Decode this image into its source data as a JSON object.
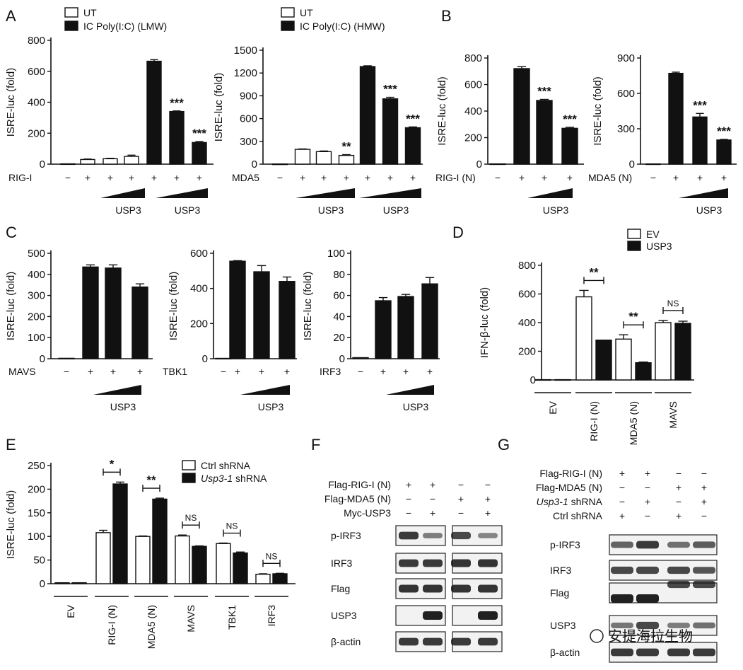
{
  "panels": [
    "A",
    "B",
    "C",
    "D",
    "E",
    "F",
    "G"
  ],
  "watermark": "安提海拉生物",
  "chart_data": [
    {
      "id": "A1",
      "type": "bar",
      "panel": "A",
      "ylabel": "ISRE-luc (fold)",
      "ylim": [
        0,
        800
      ],
      "yticks": [
        0,
        200,
        400,
        600,
        800
      ],
      "legend": [
        "UT",
        "IC Poly(I:C) (LMW)"
      ],
      "row_label": "RIG-I",
      "plus_minus": [
        "−",
        "+",
        "+",
        "+",
        "+",
        "+",
        "+"
      ],
      "fills": [
        "open",
        "open",
        "open",
        "open",
        "solid",
        "solid",
        "solid"
      ],
      "values": [
        2,
        30,
        35,
        50,
        665,
        340,
        140
      ],
      "errors": [
        0,
        3,
        3,
        8,
        10,
        4,
        6
      ],
      "sig": [
        "",
        "",
        "",
        "",
        "",
        "***",
        "***"
      ],
      "dose": [
        "USP3",
        "USP3"
      ]
    },
    {
      "id": "A2",
      "type": "bar",
      "panel": "A",
      "ylabel": "ISRE-luc (fold)",
      "ylim": [
        0,
        1500
      ],
      "yticks": [
        0,
        300,
        600,
        900,
        1200,
        1500
      ],
      "legend": [
        "UT",
        "IC Poly(I:C) (HMW)"
      ],
      "row_label": "MDA5",
      "plus_minus": [
        "−",
        "+",
        "+",
        "+",
        "+",
        "+",
        "+"
      ],
      "fills": [
        "open",
        "open",
        "open",
        "open",
        "solid",
        "solid",
        "solid"
      ],
      "values": [
        2,
        195,
        165,
        115,
        1285,
        860,
        480
      ],
      "errors": [
        0,
        5,
        8,
        10,
        10,
        20,
        10
      ],
      "sig": [
        "",
        "",
        "",
        "**",
        "",
        "***",
        "***"
      ],
      "dose": [
        "USP3",
        "USP3"
      ]
    },
    {
      "id": "B1",
      "type": "bar",
      "panel": "B",
      "ylabel": "ISRE-luc (fold)",
      "ylim": [
        0,
        800
      ],
      "yticks": [
        0,
        200,
        400,
        600,
        800
      ],
      "row_label": "RIG-I (N)",
      "plus_minus": [
        "−",
        "+",
        "+",
        "+"
      ],
      "fills": [
        "solid",
        "solid",
        "solid",
        "solid"
      ],
      "values": [
        2,
        720,
        480,
        270
      ],
      "errors": [
        0,
        15,
        8,
        8
      ],
      "sig": [
        "",
        "",
        "***",
        "***"
      ],
      "dose": [
        "USP3"
      ]
    },
    {
      "id": "B2",
      "type": "bar",
      "panel": "B",
      "ylabel": "ISRE-luc (fold)",
      "ylim": [
        0,
        900
      ],
      "yticks": [
        0,
        300,
        600,
        900
      ],
      "row_label": "MDA5 (N)",
      "plus_minus": [
        "−",
        "+",
        "+",
        "+"
      ],
      "fills": [
        "solid",
        "solid",
        "solid",
        "solid"
      ],
      "values": [
        2,
        770,
        400,
        205
      ],
      "errors": [
        0,
        10,
        30,
        5
      ],
      "sig": [
        "",
        "",
        "***",
        "***"
      ],
      "dose": [
        "USP3"
      ]
    },
    {
      "id": "C1",
      "type": "bar",
      "panel": "C",
      "ylabel": "ISRE-luc (fold)",
      "ylim": [
        0,
        500
      ],
      "yticks": [
        0,
        100,
        200,
        300,
        400,
        500
      ],
      "row_label": "MAVS",
      "plus_minus": [
        "−",
        "+",
        "+",
        "+"
      ],
      "fills": [
        "solid",
        "solid",
        "solid",
        "solid"
      ],
      "values": [
        2,
        435,
        430,
        340
      ],
      "errors": [
        0,
        10,
        15,
        15
      ],
      "sig": [
        "",
        "",
        "",
        ""
      ],
      "dose": [
        "USP3"
      ]
    },
    {
      "id": "C2",
      "type": "bar",
      "panel": "C",
      "ylabel": "ISRE-luc (fold)",
      "ylim": [
        0,
        600
      ],
      "yticks": [
        0,
        200,
        400,
        600
      ],
      "row_label": "TBK1",
      "plus_minus": [
        "−",
        "+",
        "+",
        "+"
      ],
      "fills": [
        "solid",
        "solid",
        "solid",
        "solid"
      ],
      "values": [
        2,
        555,
        495,
        440
      ],
      "errors": [
        0,
        3,
        35,
        25
      ],
      "sig": [
        "",
        "",
        "",
        ""
      ],
      "dose": [
        "USP3"
      ]
    },
    {
      "id": "C3",
      "type": "bar",
      "panel": "C",
      "ylabel": "ISRE-luc (fold)",
      "ylim": [
        0,
        100
      ],
      "yticks": [
        0,
        20,
        40,
        60,
        80,
        100
      ],
      "row_label": "IRF3",
      "plus_minus": [
        "−",
        "+",
        "+",
        "+"
      ],
      "fills": [
        "solid",
        "solid",
        "solid",
        "solid"
      ],
      "values": [
        1,
        55,
        59,
        71
      ],
      "errors": [
        0,
        3,
        2,
        6
      ],
      "sig": [
        "",
        "",
        "",
        ""
      ],
      "dose": [
        "USP3"
      ]
    },
    {
      "id": "D",
      "type": "bar",
      "panel": "D",
      "ylabel": "IFN-β-luc (fold)",
      "ylim": [
        0,
        800
      ],
      "yticks": [
        0,
        200,
        400,
        600,
        800
      ],
      "legend": [
        "EV",
        "USP3"
      ],
      "categories": [
        "EV",
        "RIG-I (N)",
        "MDA5 (N)",
        "MAVS"
      ],
      "series": [
        {
          "name": "EV",
          "values": [
            2,
            580,
            285,
            400
          ],
          "errors": [
            0,
            45,
            30,
            15
          ]
        },
        {
          "name": "USP3",
          "values": [
            2,
            278,
            120,
            395
          ],
          "errors": [
            0,
            0,
            5,
            15
          ]
        }
      ],
      "sig": [
        "",
        "**",
        "**",
        "NS"
      ]
    },
    {
      "id": "E",
      "type": "bar",
      "panel": "E",
      "ylabel": "ISRE-luc (fold)",
      "ylim": [
        0,
        250
      ],
      "yticks": [
        0,
        50,
        100,
        150,
        200,
        250
      ],
      "legend": [
        "Ctrl shRNA",
        "Usp3-1 shRNA"
      ],
      "categories": [
        "EV",
        "RIG-I (N)",
        "MDA5 (N)",
        "MAVS",
        "TBK1",
        "IRF3"
      ],
      "series": [
        {
          "name": "Ctrl shRNA",
          "values": [
            2,
            108,
            100,
            101,
            85,
            20
          ],
          "errors": [
            0,
            5,
            1,
            2,
            1,
            1
          ]
        },
        {
          "name": "Usp3-1 shRNA",
          "values": [
            2,
            211,
            179,
            79,
            65,
            21
          ],
          "errors": [
            0,
            4,
            2,
            1,
            2,
            1
          ]
        }
      ],
      "sig": [
        "",
        "*",
        "**",
        "NS",
        "NS",
        "NS"
      ]
    }
  ],
  "blots": [
    {
      "panel": "F",
      "rows": [
        {
          "label": "Flag-RIG-I (N)",
          "marks": [
            "+",
            "+",
            "−",
            "−"
          ]
        },
        {
          "label": "Flag-MDA5 (N)",
          "marks": [
            "−",
            "−",
            "+",
            "+"
          ]
        },
        {
          "label": "Myc-USP3",
          "marks": [
            "−",
            "+",
            "−",
            "+"
          ]
        }
      ],
      "bands": [
        "p-IRF3",
        "IRF3",
        "Flag",
        "USP3",
        "β-actin"
      ]
    },
    {
      "panel": "G",
      "rows": [
        {
          "label": "Flag-RIG-I (N)",
          "marks": [
            "+",
            "+",
            "−",
            "−"
          ]
        },
        {
          "label": "Flag-MDA5 (N)",
          "marks": [
            "−",
            "−",
            "+",
            "+"
          ]
        },
        {
          "label": "Usp3-1 shRNA",
          "marks": [
            "−",
            "+",
            "−",
            "+"
          ]
        },
        {
          "label": "Ctrl shRNA",
          "marks": [
            "+",
            "−",
            "+",
            "−"
          ]
        }
      ],
      "bands": [
        "p-IRF3",
        "IRF3",
        "Flag",
        "USP3",
        "β-actin"
      ]
    }
  ]
}
